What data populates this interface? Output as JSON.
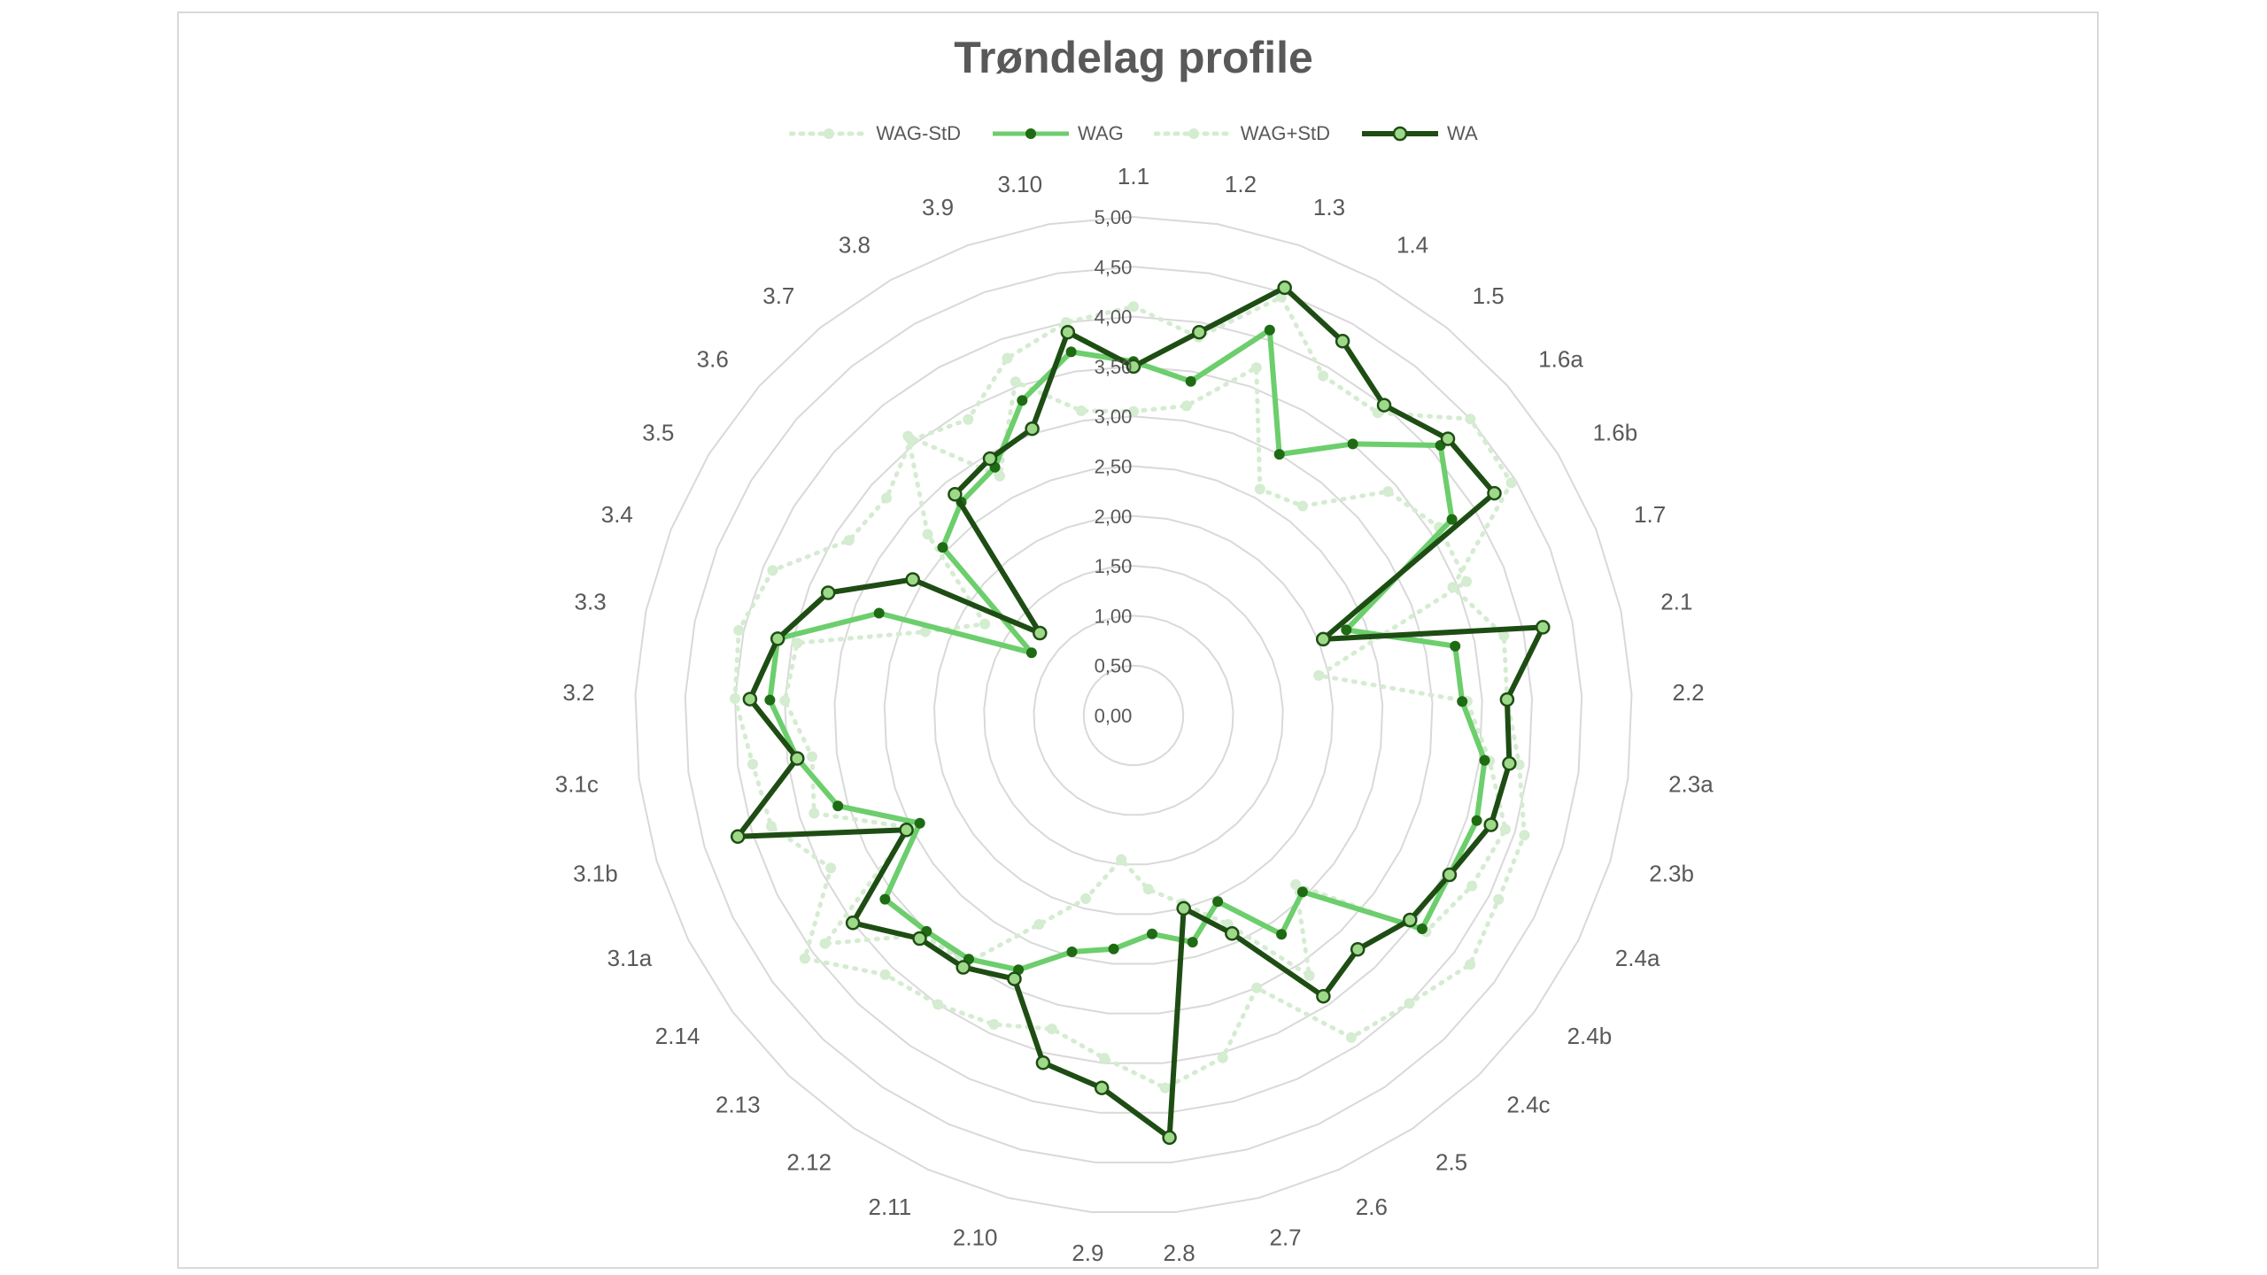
{
  "chart_data": {
    "type": "radar",
    "title": "Trøndelag profile",
    "rmin": 0,
    "rmax": 5,
    "tick_labels": [
      "0,00",
      "0,50",
      "1,00",
      "1,50",
      "2,00",
      "2,50",
      "3,00",
      "3,50",
      "4,00",
      "4,50",
      "5,00"
    ],
    "tick_values": [
      0,
      0.5,
      1,
      1.5,
      2,
      2.5,
      3,
      3.5,
      4,
      4.5,
      5
    ],
    "legend_position": "top",
    "categories": [
      "1.1",
      "1.2",
      "1.3",
      "1.4",
      "1.5",
      "1.6a",
      "1.6b",
      "1.7",
      "2.1",
      "2.2",
      "2.3a",
      "2.3b",
      "2.4a",
      "2.4b",
      "2.4c",
      "2.5",
      "2.6",
      "2.7",
      "2.8",
      "2.9",
      "2.10",
      "2.11",
      "2.12",
      "2.13",
      "2.14",
      "3.1a",
      "3.1b",
      "3.1c",
      "3.2",
      "3.3",
      "3.4",
      "3.5",
      "3.6",
      "3.7",
      "3.8",
      "3.9",
      "3.10"
    ],
    "series": [
      {
        "name": "WAG-StD",
        "color": "#d4ecd0",
        "style": "dotted",
        "values": [
          3.05,
          3.15,
          3.7,
          2.6,
          2.7,
          3.4,
          3.6,
          3.6,
          1.9,
          3.35,
          3.6,
          3.9,
          3.8,
          3.65,
          2.35,
          3.15,
          2.3,
          1.95,
          1.75,
          1.45,
          1.9,
          2.3,
          3.0,
          3.05,
          3.85,
          2.5,
          3.35,
          3.25,
          3.5,
          3.45,
          2.25,
          1.75,
          2.75,
          3.6,
          2.75,
          3.55,
          3.1
        ]
      },
      {
        "name": "WAG",
        "color": "#6cce6c",
        "style": "solid",
        "values": [
          3.55,
          3.4,
          4.1,
          3.0,
          3.5,
          4.1,
          3.75,
          2.3,
          3.3,
          3.3,
          3.55,
          3.6,
          3.55,
          3.6,
          2.45,
          2.65,
          2.05,
          2.35,
          2.2,
          2.35,
          2.45,
          2.8,
          2.95,
          3.0,
          3.1,
          2.4,
          3.1,
          3.4,
          3.65,
          3.65,
          2.75,
          1.2,
          2.55,
          2.75,
          2.85,
          3.35,
          3.7
        ]
      },
      {
        "name": "WAG+StD",
        "color": "#d4ecd0",
        "style": "dotted",
        "values": [
          4.1,
          3.85,
          4.45,
          3.9,
          3.9,
          4.5,
          4.45,
          3.45,
          3.8,
          3.75,
          3.9,
          4.1,
          4.1,
          4.2,
          4.0,
          3.9,
          3.0,
          3.55,
          3.75,
          3.45,
          3.25,
          3.4,
          3.5,
          3.6,
          4.1,
          3.4,
          3.8,
          3.85,
          4.0,
          4.05,
          3.9,
          3.35,
          3.3,
          3.55,
          3.4,
          3.8,
          4.0
        ]
      },
      {
        "name": "WA",
        "color": "#1e4d14",
        "style": "solid",
        "values": [
          3.5,
          3.9,
          4.55,
          4.3,
          4.0,
          4.2,
          4.25,
          2.05,
          4.2,
          3.75,
          3.8,
          3.75,
          3.55,
          3.45,
          3.25,
          3.4,
          2.4,
          2.0,
          4.25,
          3.75,
          3.6,
          2.9,
          3.05,
          3.1,
          3.5,
          2.55,
          4.15,
          3.4,
          3.85,
          3.65,
          3.3,
          2.6,
          1.25,
          2.85,
          2.95,
          3.05,
          3.9
        ]
      }
    ]
  }
}
